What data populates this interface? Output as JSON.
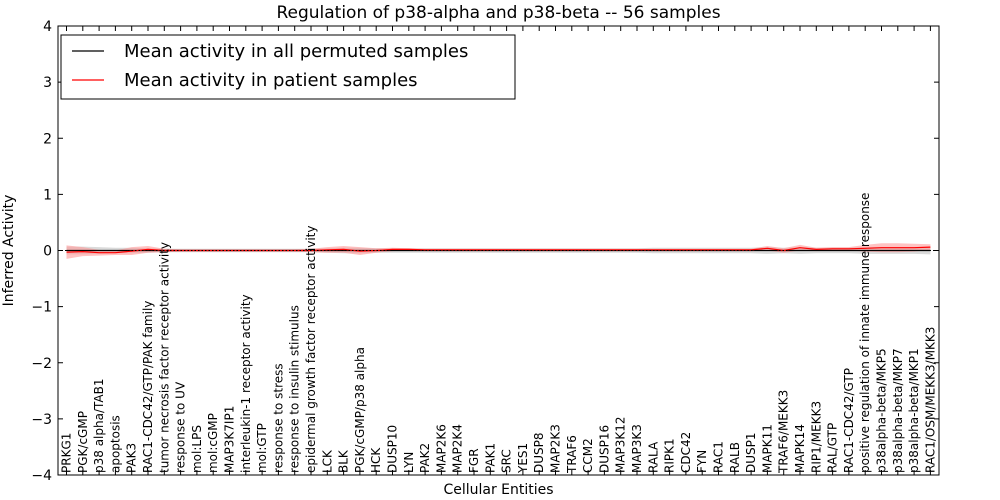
{
  "chart_data": {
    "type": "line",
    "title": "Regulation of p38-alpha and p38-beta -- 56 samples",
    "xlabel": "Cellular Entities",
    "ylabel": "Inferred Activity",
    "ylim": [
      -4,
      4
    ],
    "yticks": [
      -4,
      -3,
      -2,
      -1,
      0,
      1,
      2,
      3,
      4
    ],
    "grid": false,
    "legend_position": "top-left",
    "categories": [
      "PRKG1",
      "PGK/cGMP",
      "p38 alpha/TAB1",
      "apoptosis",
      "PAK3",
      "RAC1-CDC42/GTP/PAK family",
      "tumor necrosis factor receptor activity",
      "response to UV",
      "mol:LPS",
      "mol:cGMP",
      "MAP3K7IP1",
      "interleukin-1 receptor activity",
      "mol:GTP",
      "response to stress",
      "response to insulin stimulus",
      "epidermal growth factor receptor activity",
      "LCK",
      "BLK",
      "PGK/cGMP/p38 alpha",
      "HCK",
      "DUSP10",
      "LYN",
      "PAK2",
      "MAP2K6",
      "MAP2K4",
      "FGR",
      "PAK1",
      "SRC",
      "YES1",
      "DUSP8",
      "MAP2K3",
      "TRAF6",
      "CCM2",
      "DUSP16",
      "MAP3K12",
      "MAP3K3",
      "RALA",
      "RIPK1",
      "CDC42",
      "FYN",
      "RAC1",
      "RALB",
      "DUSP1",
      "MAPK11",
      "TRAF6/MEKK3",
      "MAPK14",
      "RIP1/MEKK3",
      "RAL/GTP",
      "RAC1-CDC42/GTP",
      "positive regulation of innate immune response",
      "p38alpha-beta/MKP5",
      "p38alpha-beta/MKP7",
      "p38alpha-beta/MKP1",
      "RAC1/OSM/MEKK3/MKK3"
    ],
    "series": [
      {
        "name": "Mean activity in all permuted samples",
        "color": "#000000",
        "band_color": "#bbbbbb",
        "values": [
          0,
          0,
          0,
          0,
          0,
          0,
          0,
          0,
          0,
          0,
          0,
          0,
          0,
          0,
          0,
          0,
          0,
          0,
          0,
          0,
          0,
          0,
          0,
          0,
          0,
          0,
          0,
          0,
          0,
          0,
          0,
          0,
          0,
          0,
          0,
          0,
          0,
          0,
          0,
          0,
          0,
          0,
          0,
          0,
          0,
          0,
          0,
          0,
          0,
          0,
          0,
          0,
          0,
          0
        ],
        "band": [
          0.07,
          0.07,
          0.06,
          0.05,
          0.05,
          0.04,
          0.03,
          0.03,
          0.03,
          0.03,
          0.03,
          0.03,
          0.03,
          0.03,
          0.03,
          0.03,
          0.04,
          0.05,
          0.05,
          0.04,
          0.04,
          0.04,
          0.04,
          0.04,
          0.04,
          0.04,
          0.04,
          0.04,
          0.04,
          0.04,
          0.04,
          0.04,
          0.04,
          0.04,
          0.04,
          0.04,
          0.05,
          0.05,
          0.05,
          0.05,
          0.05,
          0.05,
          0.05,
          0.06,
          0.05,
          0.06,
          0.05,
          0.05,
          0.05,
          0.06,
          0.06,
          0.06,
          0.06,
          0.07
        ]
      },
      {
        "name": "Mean activity in patient samples",
        "color": "#ff0000",
        "band_color": "#ff9999",
        "values": [
          -0.03,
          -0.02,
          -0.04,
          -0.04,
          -0.01,
          0.02,
          0.0,
          0.0,
          0.0,
          0.0,
          0.0,
          0.0,
          0.0,
          0.0,
          0.0,
          0.0,
          0.01,
          0.02,
          -0.01,
          0.0,
          0.02,
          0.02,
          0.01,
          0.01,
          0.01,
          0.01,
          0.01,
          0.01,
          0.01,
          0.01,
          0.01,
          0.01,
          0.01,
          0.01,
          0.01,
          0.01,
          0.01,
          0.01,
          0.01,
          0.01,
          0.01,
          0.01,
          0.01,
          0.04,
          0.0,
          0.05,
          0.02,
          0.03,
          0.03,
          0.04,
          0.05,
          0.05,
          0.05,
          0.06
        ],
        "band": [
          0.12,
          0.08,
          0.05,
          0.04,
          0.07,
          0.06,
          0.03,
          0.02,
          0.02,
          0.02,
          0.02,
          0.02,
          0.02,
          0.02,
          0.02,
          0.03,
          0.05,
          0.06,
          0.07,
          0.04,
          0.03,
          0.02,
          0.02,
          0.02,
          0.02,
          0.02,
          0.02,
          0.02,
          0.02,
          0.02,
          0.02,
          0.02,
          0.02,
          0.02,
          0.02,
          0.02,
          0.02,
          0.02,
          0.02,
          0.02,
          0.02,
          0.02,
          0.02,
          0.04,
          0.04,
          0.05,
          0.03,
          0.03,
          0.03,
          0.06,
          0.08,
          0.08,
          0.07,
          0.05
        ]
      }
    ]
  }
}
